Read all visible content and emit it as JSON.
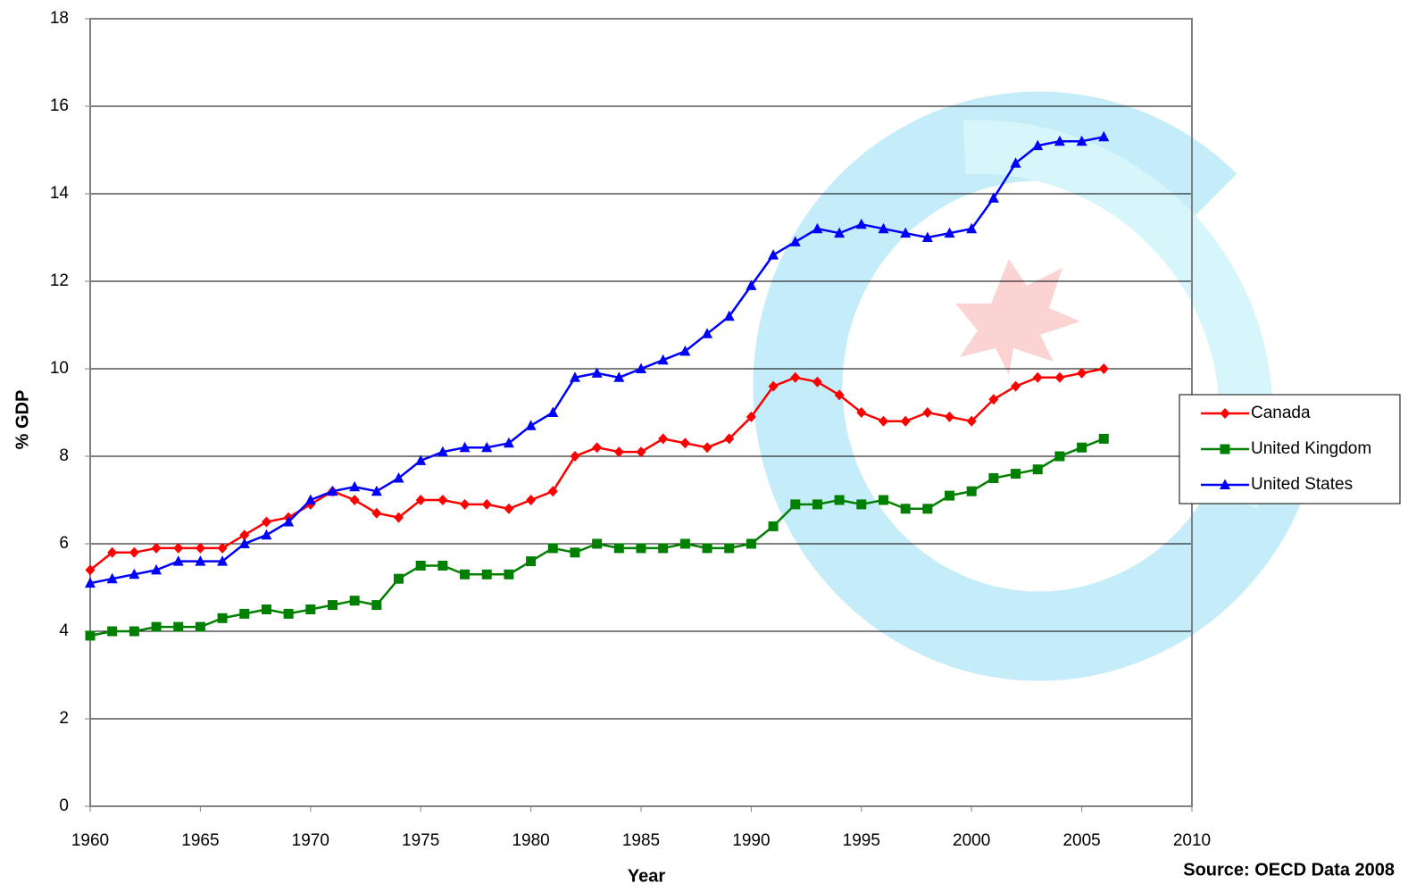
{
  "chart_data": {
    "type": "line",
    "y_label": "% GDP",
    "x_label": "Year",
    "annotation": "Source: OECD Data 2008",
    "x": [
      1960,
      1961,
      1962,
      1963,
      1964,
      1965,
      1966,
      1967,
      1968,
      1969,
      1970,
      1971,
      1972,
      1973,
      1974,
      1975,
      1976,
      1977,
      1978,
      1979,
      1980,
      1981,
      1982,
      1983,
      1984,
      1985,
      1986,
      1987,
      1988,
      1989,
      1990,
      1991,
      1992,
      1993,
      1994,
      1995,
      1996,
      1997,
      1998,
      1999,
      2000,
      2001,
      2002,
      2003,
      2004,
      2005,
      2006
    ],
    "series": [
      {
        "name": "Canada",
        "color": "#ff0000",
        "marker": "diamond",
        "values": [
          5.4,
          5.8,
          5.8,
          5.9,
          5.9,
          5.9,
          5.9,
          6.2,
          6.5,
          6.6,
          6.9,
          7.2,
          7.0,
          6.7,
          6.6,
          7.0,
          7.0,
          6.9,
          6.9,
          6.8,
          7.0,
          7.2,
          8.0,
          8.2,
          8.1,
          8.1,
          8.4,
          8.3,
          8.2,
          8.4,
          8.9,
          9.6,
          9.8,
          9.7,
          9.4,
          9.0,
          8.8,
          8.8,
          9.0,
          8.9,
          8.8,
          9.3,
          9.6,
          9.8,
          9.8,
          9.9,
          10.0
        ]
      },
      {
        "name": "United Kingdom",
        "color": "#008000",
        "marker": "square",
        "values": [
          3.9,
          4.0,
          4.0,
          4.1,
          4.1,
          4.1,
          4.3,
          4.4,
          4.5,
          4.4,
          4.5,
          4.6,
          4.7,
          4.6,
          5.2,
          5.5,
          5.5,
          5.3,
          5.3,
          5.3,
          5.6,
          5.9,
          5.8,
          6.0,
          5.9,
          5.9,
          5.9,
          6.0,
          5.9,
          5.9,
          6.0,
          6.4,
          6.9,
          6.9,
          7.0,
          6.9,
          7.0,
          6.8,
          6.8,
          7.1,
          7.2,
          7.5,
          7.6,
          7.7,
          8.0,
          8.2,
          8.4
        ]
      },
      {
        "name": "United States",
        "color": "#0000ff",
        "marker": "triangle",
        "values": [
          5.1,
          5.2,
          5.3,
          5.4,
          5.6,
          5.6,
          5.6,
          6.0,
          6.2,
          6.5,
          7.0,
          7.2,
          7.3,
          7.2,
          7.5,
          7.9,
          8.1,
          8.2,
          8.2,
          8.3,
          8.7,
          9.0,
          9.8,
          9.9,
          9.8,
          10.0,
          10.2,
          10.4,
          10.8,
          11.2,
          11.9,
          12.6,
          12.9,
          13.2,
          13.1,
          13.3,
          13.2,
          13.1,
          13.0,
          13.1,
          13.2,
          13.9,
          14.7,
          15.1,
          15.2,
          15.2,
          15.3
        ]
      }
    ],
    "xlim": [
      1960,
      2010
    ],
    "xticks": [
      1960,
      1965,
      1970,
      1975,
      1980,
      1985,
      1990,
      1995,
      2000,
      2005,
      2010
    ],
    "ylim": [
      0,
      18
    ],
    "yticks": [
      0,
      2,
      4,
      6,
      8,
      10,
      12,
      14,
      16,
      18
    ],
    "grid": true,
    "legend": "right"
  }
}
